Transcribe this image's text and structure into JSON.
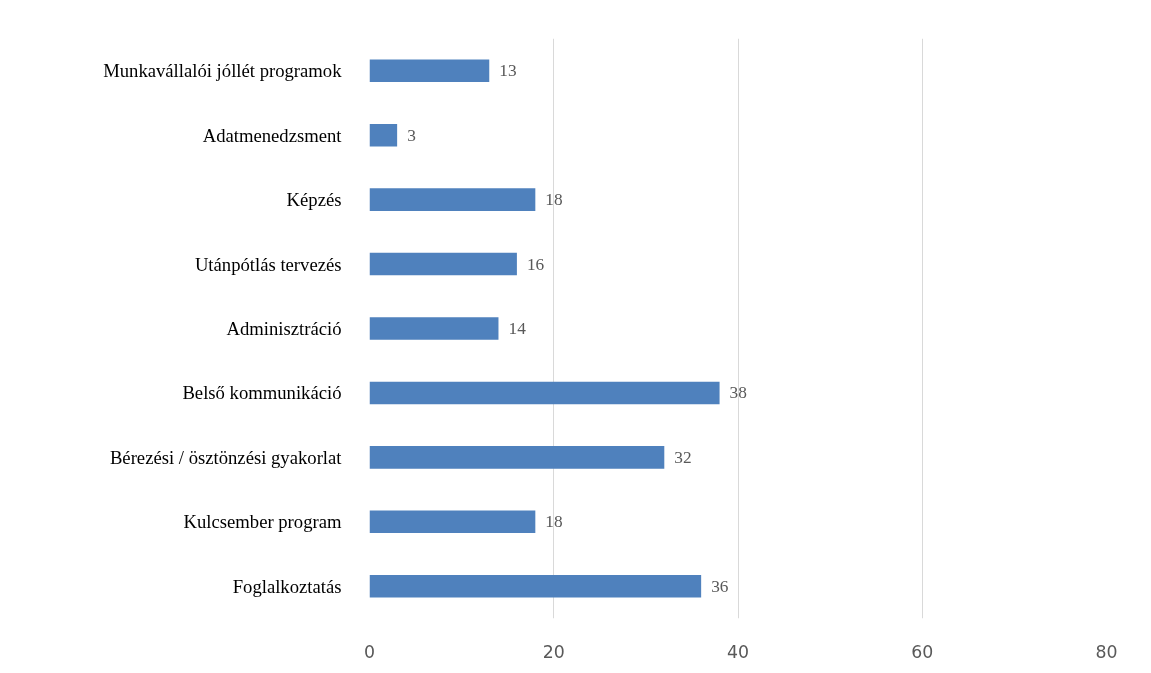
{
  "chart_data": {
    "type": "bar",
    "orientation": "horizontal",
    "categories": [
      "Munkavállalói jóllét programok",
      "Adatmenedzsment",
      "Képzés",
      "Utánpótlás tervezés",
      "Adminisztráció",
      "Belső kommunikáció",
      "Bérezési / ösztönzési gyakorlat",
      "Kulcsember program",
      "Foglalkoztatás"
    ],
    "values": [
      13,
      3,
      18,
      16,
      14,
      38,
      32,
      18,
      36
    ],
    "color": "#4f81bd",
    "xlim": [
      0,
      80
    ],
    "xticks": [
      0,
      20,
      40,
      60,
      80
    ],
    "grid": "x",
    "data_labels": true
  }
}
